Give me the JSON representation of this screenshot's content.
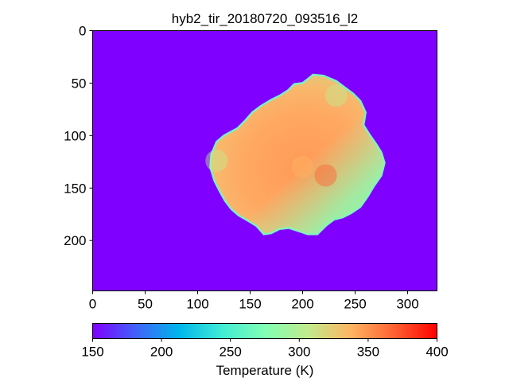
{
  "chart_data": {
    "type": "heatmap",
    "title": "hyb2_tir_20180720_093516_l2",
    "image_shape": {
      "rows": 248,
      "cols": 328
    },
    "background_value": 150,
    "x_ticks": [
      0,
      50,
      100,
      150,
      200,
      250,
      300
    ],
    "y_ticks": [
      0,
      50,
      100,
      150,
      200
    ],
    "colorbar": {
      "label": "Temperature (K)",
      "range": [
        150,
        400
      ],
      "ticks": [
        150,
        200,
        250,
        300,
        350,
        400
      ],
      "colormap": "rainbow",
      "orientation": "horizontal"
    },
    "object_outline": [
      [
        113,
        118
      ],
      [
        118,
        106
      ],
      [
        125,
        100
      ],
      [
        138,
        93
      ],
      [
        145,
        86
      ],
      [
        152,
        78
      ],
      [
        160,
        72
      ],
      [
        170,
        66
      ],
      [
        178,
        62
      ],
      [
        186,
        57
      ],
      [
        192,
        51
      ],
      [
        200,
        50
      ],
      [
        205,
        46
      ],
      [
        210,
        42
      ],
      [
        220,
        43
      ],
      [
        232,
        48
      ],
      [
        240,
        54
      ],
      [
        248,
        60
      ],
      [
        255,
        67
      ],
      [
        260,
        78
      ],
      [
        258,
        90
      ],
      [
        263,
        98
      ],
      [
        270,
        108
      ],
      [
        275,
        116
      ],
      [
        278,
        126
      ],
      [
        275,
        138
      ],
      [
        268,
        148
      ],
      [
        262,
        158
      ],
      [
        255,
        168
      ],
      [
        246,
        174
      ],
      [
        238,
        178
      ],
      [
        230,
        180
      ],
      [
        222,
        186
      ],
      [
        214,
        194
      ],
      [
        205,
        194
      ],
      [
        196,
        191
      ],
      [
        187,
        188
      ],
      [
        178,
        189
      ],
      [
        170,
        193
      ],
      [
        163,
        194
      ],
      [
        156,
        186
      ],
      [
        146,
        180
      ],
      [
        139,
        176
      ],
      [
        132,
        170
      ],
      [
        126,
        162
      ],
      [
        121,
        153
      ],
      [
        116,
        143
      ],
      [
        112,
        130
      ]
    ],
    "temperature_features": [
      {
        "region": "interior",
        "x": 200,
        "y": 130,
        "approx_value": 345
      },
      {
        "region": "upper-right rim",
        "x": 232,
        "y": 62,
        "approx_value": 295
      },
      {
        "region": "left rim",
        "x": 118,
        "y": 124,
        "approx_value": 300
      },
      {
        "region": "central hot patch",
        "x": 222,
        "y": 138,
        "approx_value": 360
      }
    ]
  }
}
